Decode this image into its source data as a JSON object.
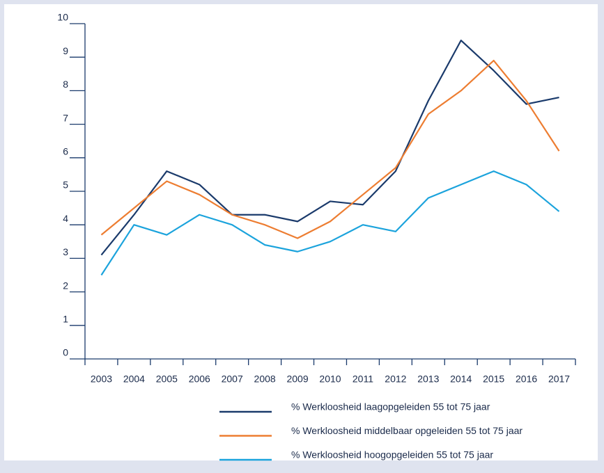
{
  "chart_data": {
    "type": "line",
    "categories": [
      "2003",
      "2004",
      "2005",
      "2006",
      "2007",
      "2008",
      "2009",
      "2010",
      "2011",
      "2012",
      "2013",
      "2014",
      "2015",
      "2016",
      "2017"
    ],
    "series": [
      {
        "name": "% Werkloosheid laagopgeleiden 55 tot 75 jaar",
        "color": "#1a3a6b",
        "values": [
          3.1,
          4.3,
          5.6,
          5.2,
          4.3,
          4.3,
          4.1,
          4.7,
          4.6,
          5.6,
          7.7,
          9.5,
          8.6,
          7.6,
          7.8
        ]
      },
      {
        "name": "% Werkloosheid middelbaar opgeleiden 55 tot 75 jaar",
        "color": "#ed7d31",
        "values": [
          3.7,
          4.5,
          5.3,
          4.9,
          4.3,
          4.0,
          3.6,
          4.1,
          4.9,
          5.7,
          7.3,
          8.0,
          8.9,
          7.7,
          6.2
        ]
      },
      {
        "name": "% Werkloosheid hoogopgeleiden 55 tot 75 jaar",
        "color": "#1ba3dc",
        "values": [
          2.5,
          4.0,
          3.7,
          4.3,
          4.0,
          3.4,
          3.2,
          3.5,
          4.0,
          3.8,
          4.8,
          5.2,
          5.6,
          5.2,
          4.4
        ]
      }
    ],
    "ylim": [
      0,
      10
    ],
    "yticks": [
      0,
      1,
      2,
      3,
      4,
      5,
      6,
      7,
      8,
      9,
      10
    ],
    "grid": false
  }
}
